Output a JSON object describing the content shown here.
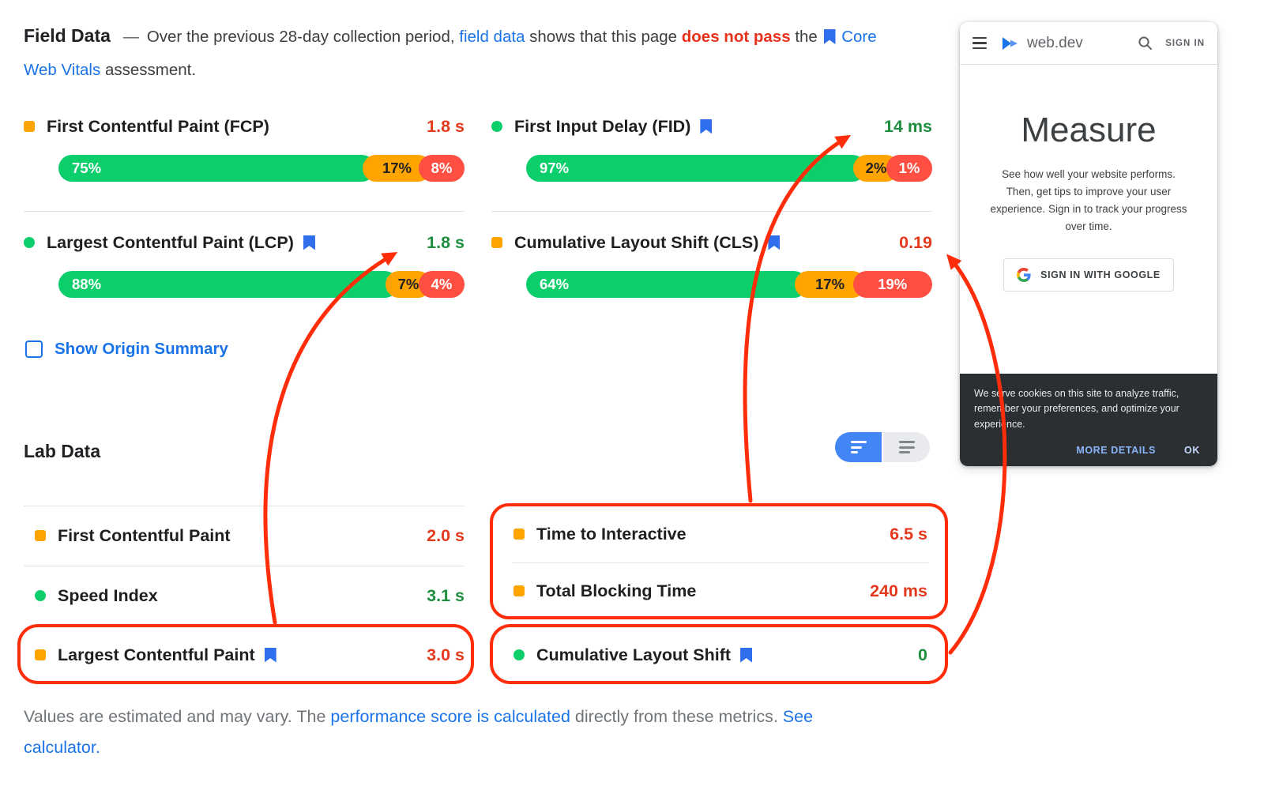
{
  "colors": {
    "green": "#0cce6b",
    "orange": "#ffa400",
    "red": "#ff4e42",
    "value_green": "#1e8e3e",
    "value_red": "#e33a1e",
    "fail_red": "#e8321c",
    "link_blue": "#1a73e8",
    "annotation_red": "#ff2d09"
  },
  "icons": {
    "bookmark": "blue bookmark shape",
    "orange_square": "orange rounded square",
    "green_circle": "green circle",
    "menu": "hamburger lines",
    "search": "magnifier",
    "view_dense": "short aligned lines",
    "view_wide": "long aligned lines",
    "google_g": "multicolor G"
  },
  "field_data": {
    "title": "Field Data",
    "intro": {
      "dash": "—",
      "t1": "Over the previous 28-day collection period,",
      "link_field_data": "field data",
      "t2": "shows that this page",
      "fail": "does not pass",
      "t3": "the",
      "link_cwv": "Core Web Vitals",
      "t4": "assessment."
    },
    "metrics": [
      {
        "name": "First Contentful Paint (FCP)",
        "value": "1.8 s",
        "value_color": "red",
        "icon": "square",
        "bookmark": false,
        "bar": [
          {
            "label": "75%",
            "pct": 75,
            "color": "green"
          },
          {
            "label": "17%",
            "pct": 17,
            "color": "orange"
          },
          {
            "label": "8%",
            "pct": 8,
            "color": "red"
          }
        ]
      },
      {
        "name": "First Input Delay (FID)",
        "value": "14 ms",
        "value_color": "green",
        "icon": "circle",
        "bookmark": true,
        "bar": [
          {
            "label": "97%",
            "pct": 97,
            "color": "green"
          },
          {
            "label": "2%",
            "pct": 2,
            "color": "orange"
          },
          {
            "label": "1%",
            "pct": 1,
            "color": "red"
          }
        ]
      },
      {
        "name": "Largest Contentful Paint (LCP)",
        "value": "1.8 s",
        "value_color": "green",
        "icon": "circle",
        "bookmark": true,
        "bar": [
          {
            "label": "88%",
            "pct": 88,
            "color": "green"
          },
          {
            "label": "7%",
            "pct": 7,
            "color": "orange"
          },
          {
            "label": "4%",
            "pct": 4,
            "color": "red"
          }
        ]
      },
      {
        "name": "Cumulative Layout Shift (CLS)",
        "value": "0.19",
        "value_color": "red",
        "icon": "square",
        "bookmark": true,
        "bar": [
          {
            "label": "64%",
            "pct": 64,
            "color": "green"
          },
          {
            "label": "17%",
            "pct": 17,
            "color": "orange"
          },
          {
            "label": "19%",
            "pct": 19,
            "color": "red"
          }
        ]
      }
    ],
    "show_origin_label": "Show Origin Summary"
  },
  "lab_data": {
    "title": "Lab Data",
    "metrics": [
      {
        "name": "First Contentful Paint",
        "value": "2.0 s",
        "value_color": "red",
        "icon": "square",
        "bookmark": false
      },
      {
        "name": "Speed Index",
        "value": "3.1 s",
        "value_color": "green",
        "icon": "circle",
        "bookmark": false
      },
      {
        "name": "Largest Contentful Paint",
        "value": "3.0 s",
        "value_color": "red",
        "icon": "square",
        "bookmark": true
      },
      {
        "name": "Time to Interactive",
        "value": "6.5 s",
        "value_color": "red",
        "icon": "square",
        "bookmark": false
      },
      {
        "name": "Total Blocking Time",
        "value": "240 ms",
        "value_color": "red",
        "icon": "square",
        "bookmark": false
      },
      {
        "name": "Cumulative Layout Shift",
        "value": "0",
        "value_color": "green",
        "icon": "circle",
        "bookmark": true
      }
    ]
  },
  "footer": {
    "t1": "Values are estimated and may vary. The",
    "link_perf": "performance score is calculated",
    "t2": "directly from these metrics.",
    "link_calc": "See calculator."
  },
  "phone": {
    "brand": "web.dev",
    "sign_in": "SIGN IN",
    "heading": "Measure",
    "body": "See how well your website performs. Then, get tips to improve your user experience. Sign in to track your progress over time.",
    "google_button": "SIGN IN WITH GOOGLE",
    "cookie_text": "We serve cookies on this site to analyze traffic, remember your preferences, and optimize your experience.",
    "more_details": "MORE DETAILS",
    "ok": "OK"
  }
}
